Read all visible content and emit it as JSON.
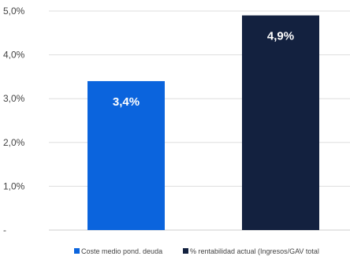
{
  "chart_data": {
    "type": "bar",
    "categories": [
      "Coste medio pond. deuda",
      "% rentabilidad actual (Ingresos/GAV total"
    ],
    "series": [
      {
        "name": "Coste medio pond. deuda",
        "values": [
          3.4,
          null
        ],
        "color": "#0b64dd"
      },
      {
        "name": "% rentabilidad actual (Ingresos/GAV total",
        "values": [
          null,
          4.9
        ],
        "color": "#13213f"
      }
    ],
    "values": [
      3.4,
      4.9
    ],
    "data_labels": [
      "3,4%",
      "4,9%"
    ],
    "colors": [
      "#0b64dd",
      "#13213f"
    ],
    "ylim": [
      0,
      5
    ],
    "yticks": [
      0,
      1,
      2,
      3,
      4,
      5
    ],
    "ytick_labels": [
      "-",
      "1,0%",
      "2,0%",
      "3,0%",
      "4,0%",
      "5,0%"
    ],
    "title": "",
    "xlabel": "",
    "ylabel": "",
    "grid": true,
    "legend_position": "bottom"
  }
}
